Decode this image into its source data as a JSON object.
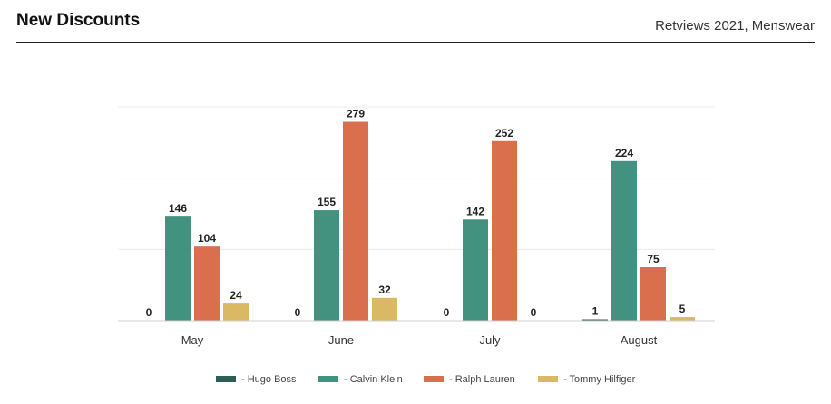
{
  "header": {
    "title": "New Discounts",
    "subtitle": "Retviews 2021, Menswear"
  },
  "chart_data": {
    "type": "bar",
    "categories": [
      "May",
      "June",
      "July",
      "August"
    ],
    "series": [
      {
        "name": "Hugo Boss",
        "legend_label": "- Hugo Boss",
        "color": "#2f5e54",
        "values": [
          0,
          0,
          0,
          1
        ]
      },
      {
        "name": "Calvin Klein",
        "legend_label": "- Calvin Klein",
        "color": "#43927f",
        "values": [
          146,
          155,
          142,
          224
        ]
      },
      {
        "name": "Ralph Lauren",
        "legend_label": "- Ralph Lauren",
        "color": "#d96f4c",
        "values": [
          104,
          279,
          252,
          75
        ]
      },
      {
        "name": "Tommy Hilfiger",
        "legend_label": "- Tommy Hilfiger",
        "color": "#dbb964",
        "values": [
          24,
          32,
          0,
          5
        ]
      }
    ],
    "ylim": [
      0,
      300
    ],
    "grid": true,
    "legend_position": "bottom-center"
  }
}
